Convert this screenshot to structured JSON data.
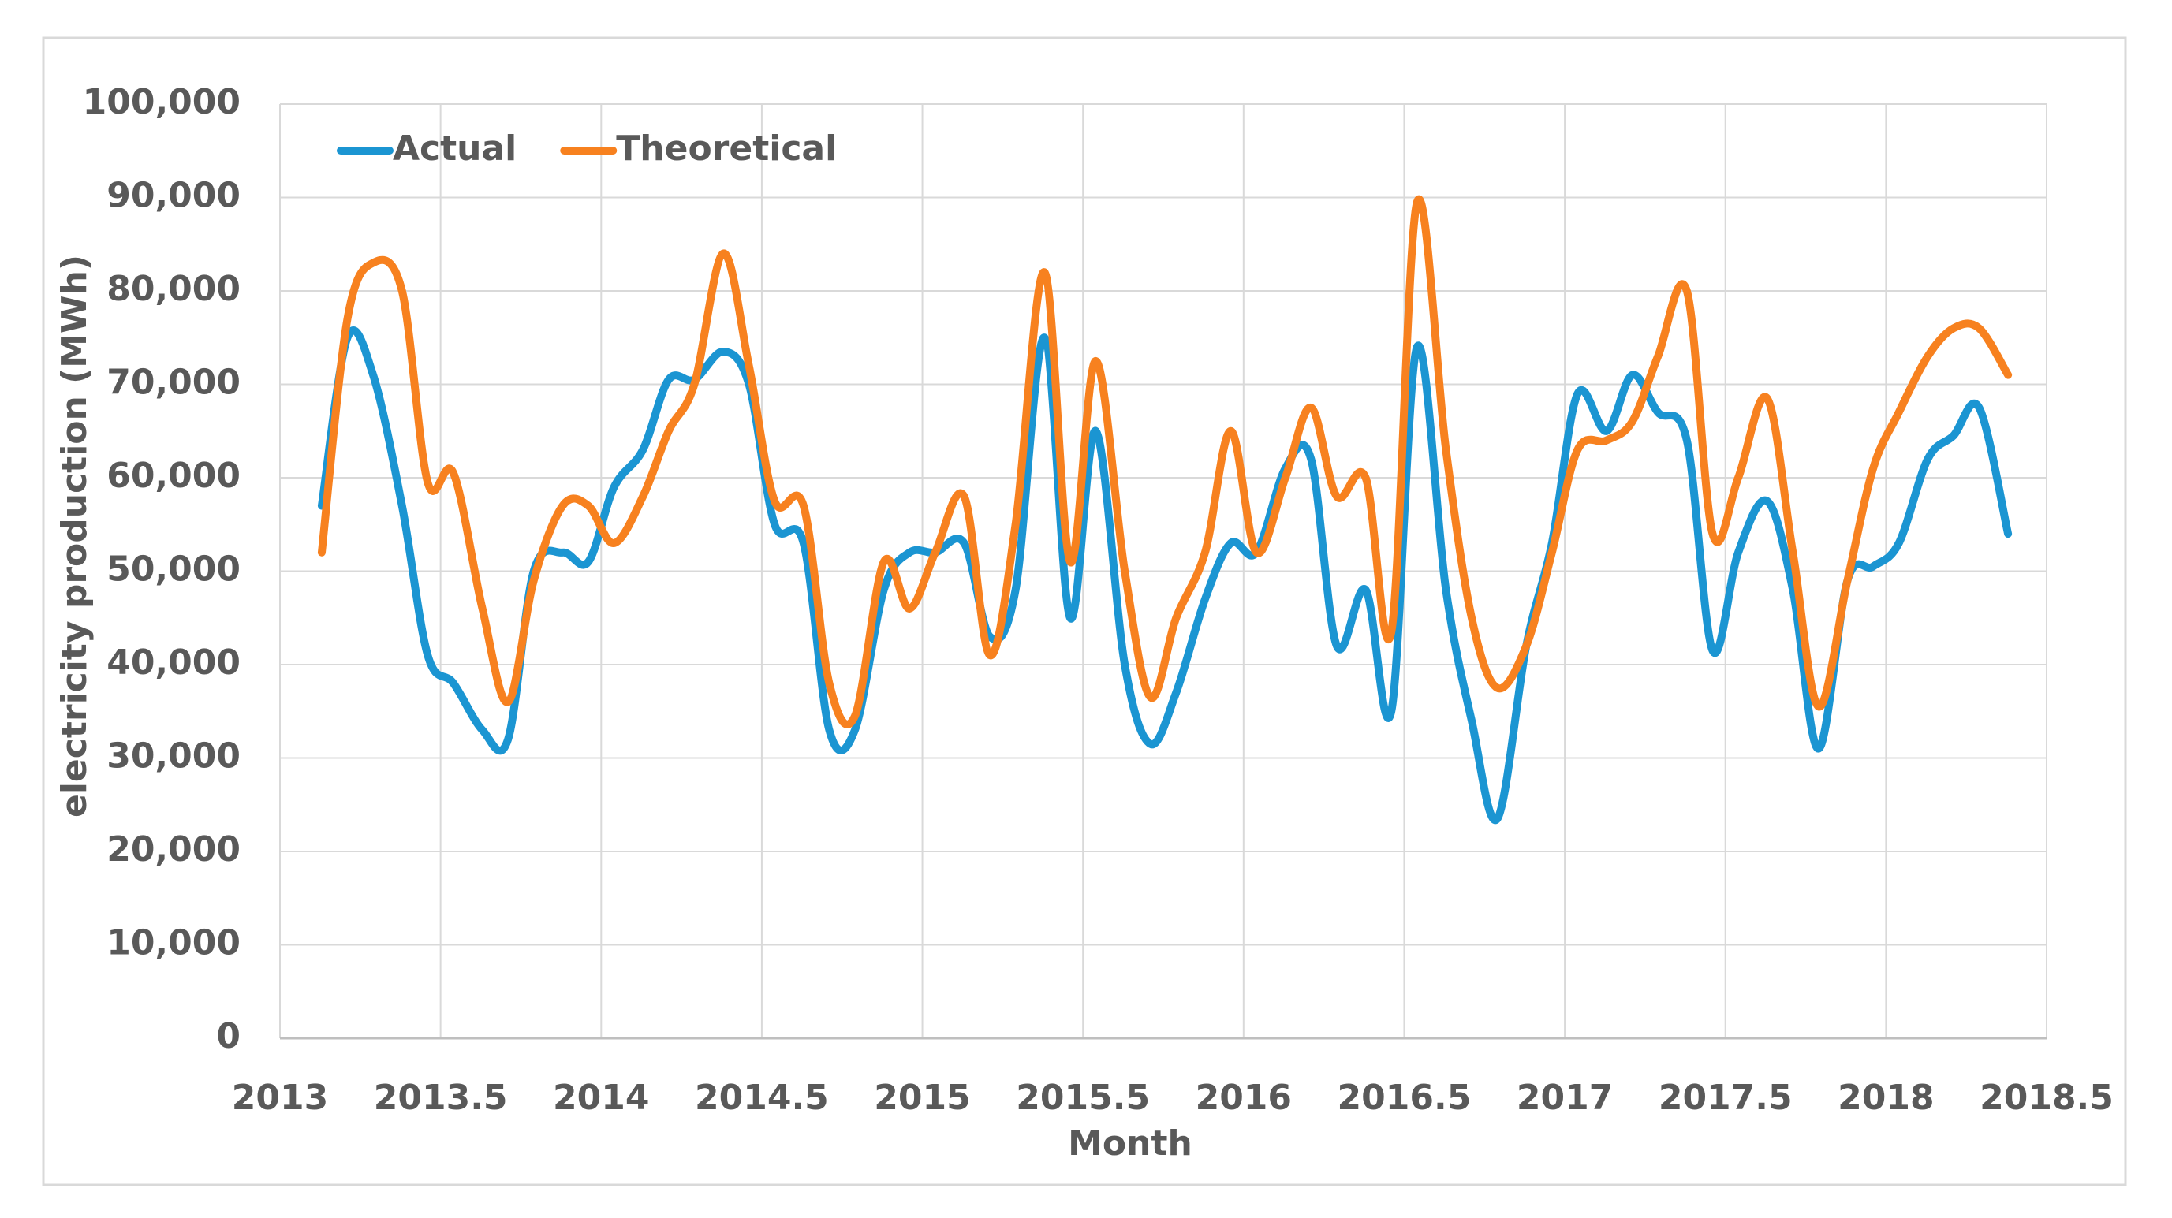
{
  "chart_data": {
    "type": "line",
    "xlabel": "Month",
    "ylabel": "electricity production (MWh)",
    "x": [
      2013.13,
      2013.21,
      2013.29,
      2013.38,
      2013.46,
      2013.54,
      2013.63,
      2013.71,
      2013.79,
      2013.88,
      2013.96,
      2014.04,
      2014.13,
      2014.21,
      2014.29,
      2014.38,
      2014.46,
      2014.54,
      2014.63,
      2014.71,
      2014.79,
      2014.88,
      2014.96,
      2015.04,
      2015.13,
      2015.21,
      2015.29,
      2015.38,
      2015.46,
      2015.54,
      2015.63,
      2015.71,
      2015.79,
      2015.88,
      2015.96,
      2016.04,
      2016.13,
      2016.21,
      2016.29,
      2016.38,
      2016.46,
      2016.54,
      2016.63,
      2016.71,
      2016.79,
      2016.88,
      2016.96,
      2017.04,
      2017.13,
      2017.21,
      2017.29,
      2017.38,
      2017.46,
      2017.54,
      2017.63,
      2017.71,
      2017.79,
      2017.88,
      2017.96,
      2018.04,
      2018.13,
      2018.21,
      2018.29,
      2018.38
    ],
    "series": [
      {
        "name": "Actual",
        "color": "#1b95d2",
        "values": [
          57000,
          75000,
          71000,
          57000,
          41000,
          38000,
          33000,
          32000,
          50000,
          52000,
          51000,
          59000,
          63000,
          70500,
          70500,
          73500,
          70000,
          55000,
          53000,
          33000,
          33000,
          48000,
          52000,
          52000,
          53000,
          43000,
          48000,
          75000,
          45000,
          65000,
          40000,
          31500,
          37000,
          47000,
          53000,
          52000,
          61000,
          62000,
          42000,
          48000,
          35000,
          74000,
          48000,
          34000,
          23500,
          42000,
          53000,
          69000,
          65000,
          71000,
          67000,
          64000,
          41500,
          52000,
          57500,
          48000,
          31000,
          49000,
          50500,
          53000,
          62000,
          64500,
          67500,
          54000
        ]
      },
      {
        "name": "Theoretical",
        "color": "#f7811f",
        "values": [
          52000,
          77000,
          83000,
          80000,
          59500,
          60500,
          46000,
          36000,
          49000,
          57000,
          57000,
          53000,
          58000,
          65000,
          70000,
          84000,
          72000,
          57500,
          57000,
          38000,
          34500,
          51000,
          46000,
          52000,
          58000,
          41000,
          55000,
          82000,
          51000,
          72500,
          50000,
          36500,
          45000,
          52000,
          65000,
          52000,
          60000,
          67500,
          58000,
          60000,
          43500,
          89500,
          63000,
          45000,
          37500,
          42000,
          52000,
          63000,
          64000,
          66000,
          73000,
          80000,
          54000,
          60000,
          68500,
          52000,
          35500,
          49000,
          61000,
          67000,
          73000,
          76000,
          76000,
          71000
        ]
      }
    ],
    "xlim": [
      2013,
      2018.5
    ],
    "xticks": [
      2013,
      2013.5,
      2014,
      2014.5,
      2015,
      2015.5,
      2016,
      2016.5,
      2017,
      2017.5,
      2018,
      2018.5
    ],
    "ylim": [
      0,
      100000
    ],
    "yticks": [
      0,
      {
        "value": 10000,
        "label": "10,000"
      },
      {
        "value": 20000,
        "label": "20,000"
      },
      {
        "value": 30000,
        "label": "30,000"
      },
      {
        "value": 40000,
        "label": "40,000"
      },
      {
        "value": 50000,
        "label": "50,000"
      },
      {
        "value": 60000,
        "label": "60,000"
      },
      {
        "value": 70000,
        "label": "70,000"
      },
      {
        "value": 80000,
        "label": "80,000"
      },
      {
        "value": 90000,
        "label": "90,000"
      },
      {
        "value": 100000,
        "label": "100,000"
      }
    ],
    "grid": true,
    "legend": "top-left"
  }
}
